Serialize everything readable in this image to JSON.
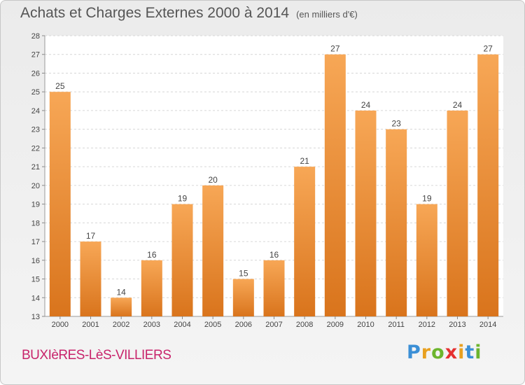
{
  "chart_data": {
    "type": "bar",
    "title": "Achats et Charges Externes 2000 à 2014",
    "subtitle": "(en milliers d'€)",
    "categories": [
      "2000",
      "2001",
      "2002",
      "2003",
      "2004",
      "2005",
      "2006",
      "2007",
      "2008",
      "2009",
      "2010",
      "2011",
      "2012",
      "2013",
      "2014"
    ],
    "values": [
      25,
      17,
      14,
      16,
      19,
      20,
      15,
      16,
      21,
      27,
      24,
      23,
      19,
      24,
      27
    ],
    "ylim": [
      13,
      28
    ],
    "yticks": [
      13,
      14,
      15,
      16,
      17,
      18,
      19,
      20,
      21,
      22,
      23,
      24,
      25,
      26,
      27,
      28
    ],
    "xlabel": "",
    "ylabel": "",
    "grid": true,
    "bar_color_top": "#f7a756",
    "bar_color_bottom": "#d9741c"
  },
  "footer": {
    "commune": "BUXIèRES-LèS-VILLIERS",
    "logo_letters": [
      {
        "char": "P",
        "color": "#3b8fd6"
      },
      {
        "char": "r",
        "color": "#e8a020"
      },
      {
        "char": "o",
        "color": "#6cb52d"
      },
      {
        "char": "x",
        "color": "#e53030"
      },
      {
        "char": "i",
        "color": "#e8a020"
      },
      {
        "char": "t",
        "color": "#3b8fd6"
      },
      {
        "char": "i",
        "color": "#6cb52d"
      }
    ]
  }
}
